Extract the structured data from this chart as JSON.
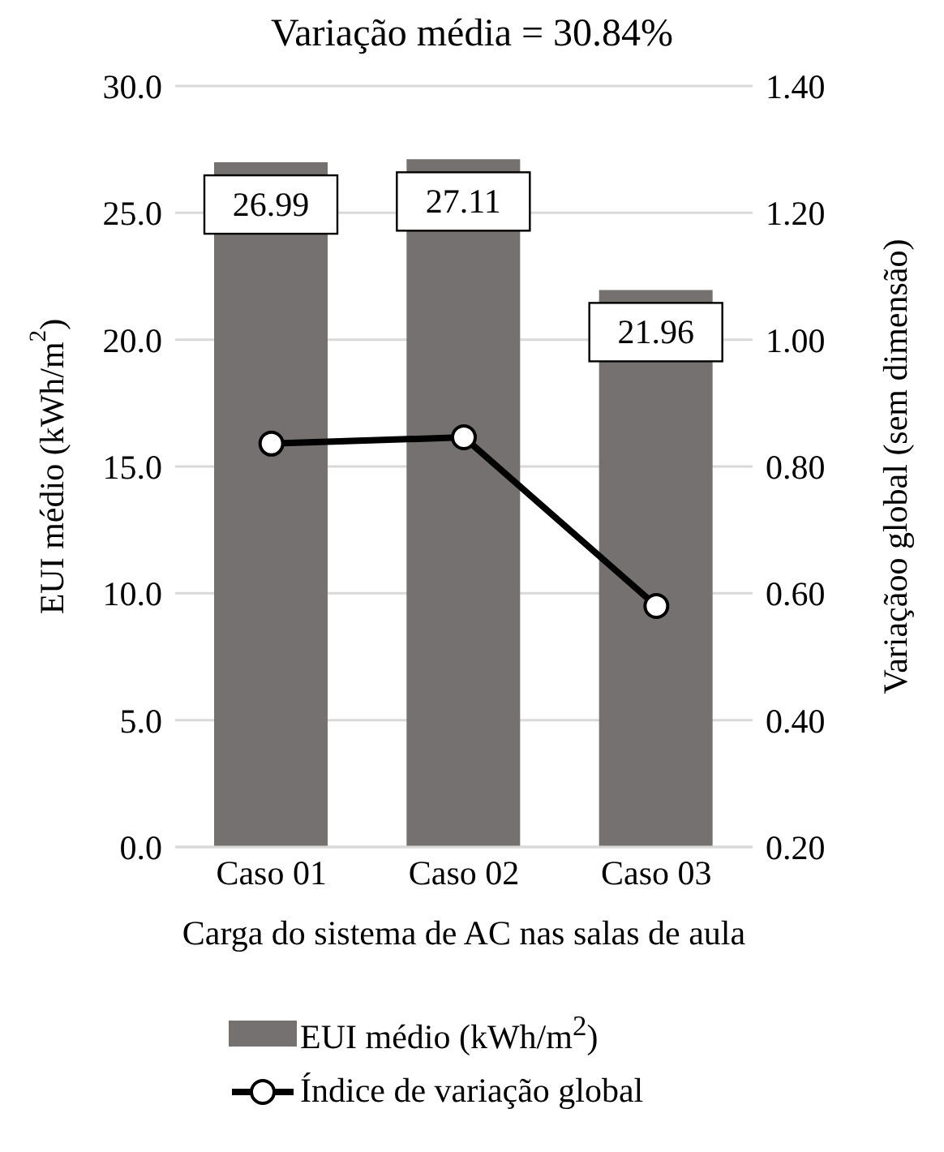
{
  "chart_data": {
    "type": "bar",
    "title": "Variação média = 30.84%",
    "xlabel": "Carga do sistema de AC nas salas de aula",
    "ylabel": "EUI médio (kWh/m$^{2}$)",
    "y2label": "Variaçãoo global (sem dimensão)",
    "categories": [
      "Caso 01",
      "Caso 02",
      "Caso 03"
    ],
    "series": [
      {
        "name": "EUI médio (kWh/m$^{2}$)",
        "color": "#767171",
        "values": [
          26.99,
          27.11,
          21.96
        ],
        "value_labels": [
          "26.99",
          "27.11",
          "21.96"
        ]
      },
      {
        "name": "Índice de variação global",
        "type": "line",
        "axis": "y2",
        "color": "#000000",
        "marker": "circle",
        "values": [
          0.836,
          0.846,
          0.58
        ]
      }
    ],
    "ylim": [
      0,
      30
    ],
    "yticks": [
      {
        "value": 0,
        "label": "0.0"
      },
      {
        "value": 5,
        "label": "5.0"
      },
      {
        "value": 10,
        "label": "10.0"
      },
      {
        "value": 15,
        "label": "15.0"
      },
      {
        "value": 20,
        "label": "20.0"
      },
      {
        "value": 25,
        "label": "25.0"
      },
      {
        "value": 30,
        "label": "30.0"
      }
    ],
    "y2lim": [
      0.2,
      1.4
    ],
    "y2ticks": [
      {
        "value": 0.2,
        "label": "0.20"
      },
      {
        "value": 0.4,
        "label": "0.40"
      },
      {
        "value": 0.6,
        "label": "0.60"
      },
      {
        "value": 0.8,
        "label": "0.80"
      },
      {
        "value": 1.0,
        "label": "1.00"
      },
      {
        "value": 1.2,
        "label": "1.20"
      },
      {
        "value": 1.4,
        "label": "1.40"
      }
    ],
    "grid": "y",
    "legend": "bottom"
  }
}
